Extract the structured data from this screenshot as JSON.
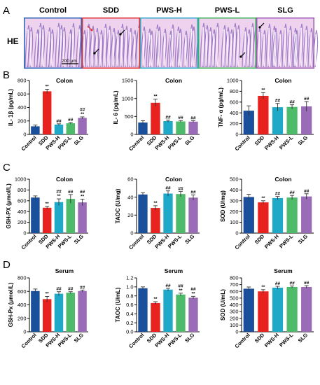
{
  "groups": [
    "Control",
    "SDD",
    "PWS-H",
    "PWS-L",
    "SLG"
  ],
  "colors": {
    "Control": "#1a4f9c",
    "SDD": "#e8231f",
    "PWS-H": "#1fa9c9",
    "PWS-L": "#4dbb6a",
    "SLG": "#9a6bb6"
  },
  "histology": {
    "panel_label": "A",
    "row_label": "HE",
    "scale_bar": "200 μm",
    "border_colors": [
      "#2a64b8",
      "#e03030",
      "#2aa9c9",
      "#3bb35a",
      "#9a5ab0"
    ]
  },
  "panel_labels": {
    "B": "B",
    "C": "C",
    "D": "D"
  },
  "chart_data": [
    {
      "type": "bar",
      "panel": "B",
      "title": "Colon",
      "ylabel": "IL- 1β (pg/mL)",
      "ylim": [
        0,
        800
      ],
      "yticks": [
        0,
        200,
        400,
        600,
        800
      ],
      "categories": [
        "Control",
        "SDD",
        "PWS-H",
        "PWS-L",
        "SLG"
      ],
      "values": [
        120,
        640,
        145,
        165,
        245
      ],
      "errors": [
        18,
        30,
        12,
        10,
        15
      ],
      "annotations": [
        "",
        "**",
        "##",
        "##",
        "## **"
      ]
    },
    {
      "type": "bar",
      "panel": "B",
      "title": "Colon",
      "ylabel": "IL- 6 (pg/mL)",
      "ylim": [
        0,
        1500
      ],
      "yticks": [
        0,
        500,
        1000,
        1500
      ],
      "categories": [
        "Control",
        "SDD",
        "PWS-H",
        "PWS-L",
        "SLG"
      ],
      "values": [
        330,
        880,
        370,
        360,
        355
      ],
      "errors": [
        50,
        100,
        30,
        25,
        25
      ],
      "annotations": [
        "",
        "**",
        "##",
        "##",
        "##"
      ]
    },
    {
      "type": "bar",
      "panel": "B",
      "title": "Colon",
      "ylabel": "TNF- α (pg/mL)",
      "ylim": [
        0,
        1000
      ],
      "yticks": [
        0,
        200,
        400,
        600,
        800,
        1000
      ],
      "categories": [
        "Control",
        "SDD",
        "PWS-H",
        "PWS-L",
        "SLG"
      ],
      "values": [
        440,
        715,
        505,
        510,
        520
      ],
      "errors": [
        90,
        60,
        70,
        40,
        90
      ],
      "annotations": [
        "",
        "**",
        "##",
        "##",
        "##"
      ]
    },
    {
      "type": "bar",
      "panel": "C",
      "title": "Colon",
      "ylabel": "GSH-PX (μmol/L)",
      "ylim": [
        0,
        1000
      ],
      "yticks": [
        0,
        200,
        400,
        600,
        800,
        1000
      ],
      "categories": [
        "Control",
        "SDD",
        "PWS-H",
        "PWS-L",
        "SLG"
      ],
      "values": [
        660,
        470,
        575,
        635,
        570
      ],
      "errors": [
        30,
        25,
        60,
        80,
        60
      ],
      "annotations": [
        "",
        "**",
        "## **",
        "##",
        "## **"
      ]
    },
    {
      "type": "bar",
      "panel": "C",
      "title": "Colon",
      "ylabel": "TAOC (U/mg)",
      "ylim": [
        0,
        60
      ],
      "yticks": [
        0,
        20,
        40,
        60
      ],
      "categories": [
        "Control",
        "SDD",
        "PWS-H",
        "PWS-L",
        "SLG"
      ],
      "values": [
        43,
        28,
        44,
        43.5,
        39.5
      ],
      "errors": [
        2,
        2.5,
        3,
        3,
        3
      ],
      "annotations": [
        "",
        "**",
        "##",
        "##",
        "##"
      ]
    },
    {
      "type": "bar",
      "panel": "C",
      "title": "Colon",
      "ylabel": "SOD (U/mg)",
      "ylim": [
        0,
        500
      ],
      "yticks": [
        0,
        100,
        200,
        300,
        400,
        500
      ],
      "categories": [
        "Control",
        "SDD",
        "PWS-H",
        "PWS-L",
        "SLG"
      ],
      "values": [
        335,
        285,
        325,
        330,
        340
      ],
      "errors": [
        25,
        15,
        15,
        20,
        25
      ],
      "annotations": [
        "",
        "**",
        "##",
        "##",
        "##"
      ]
    },
    {
      "type": "bar",
      "panel": "D",
      "title": "Serum",
      "ylabel": "GSH-Px (μmol/L)",
      "ylim": [
        0,
        800
      ],
      "yticks": [
        0,
        200,
        400,
        600,
        800
      ],
      "categories": [
        "Control",
        "SDD",
        "PWS-H",
        "PWS-L",
        "SLG"
      ],
      "values": [
        605,
        485,
        565,
        580,
        605
      ],
      "errors": [
        30,
        40,
        30,
        15,
        15
      ],
      "annotations": [
        "",
        "**",
        "##",
        "##",
        "##"
      ]
    },
    {
      "type": "bar",
      "panel": "D",
      "title": "Serum",
      "ylabel": "TAOC (U/mL)",
      "ylim": [
        0,
        1.2
      ],
      "yticks": [
        0.0,
        0.2,
        0.4,
        0.6,
        0.8,
        1.0,
        1.2
      ],
      "tick_decimals": 1,
      "categories": [
        "Control",
        "SDD",
        "PWS-H",
        "PWS-L",
        "SLG"
      ],
      "values": [
        0.97,
        0.64,
        0.94,
        0.83,
        0.76
      ],
      "errors": [
        0.03,
        0.03,
        0.03,
        0.03,
        0.03
      ],
      "annotations": [
        "",
        "**",
        "##",
        "## **",
        "## **"
      ]
    },
    {
      "type": "bar",
      "panel": "D",
      "title": "Serum",
      "ylabel": "SOD (U/mL)",
      "ylim": [
        0,
        800
      ],
      "yticks": [
        0,
        100,
        200,
        300,
        400,
        500,
        600,
        700,
        800
      ],
      "categories": [
        "Control",
        "SDD",
        "PWS-H",
        "PWS-L",
        "SLG"
      ],
      "values": [
        640,
        600,
        655,
        665,
        665
      ],
      "errors": [
        25,
        25,
        20,
        15,
        20
      ],
      "annotations": [
        "",
        "**",
        "##",
        "##",
        "##"
      ]
    }
  ]
}
